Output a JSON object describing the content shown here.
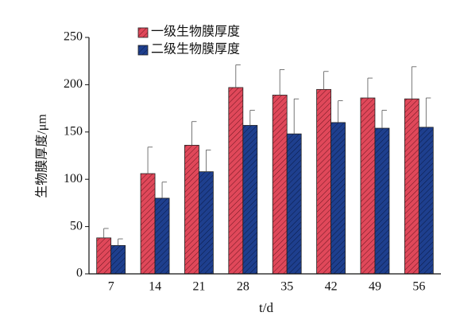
{
  "chart_data": {
    "type": "bar",
    "categories": [
      "7",
      "14",
      "21",
      "28",
      "35",
      "42",
      "49",
      "56"
    ],
    "series": [
      {
        "name": "一级生物膜厚度",
        "color": "#e0485a",
        "values": [
          38,
          106,
          136,
          197,
          189,
          195,
          186,
          185
        ],
        "errors": [
          10,
          28,
          25,
          24,
          27,
          19,
          21,
          34
        ]
      },
      {
        "name": "二级生物膜厚度",
        "color": "#1e3f8e",
        "values": [
          30,
          80,
          108,
          157,
          148,
          160,
          154,
          155
        ],
        "errors": [
          7,
          17,
          23,
          16,
          37,
          23,
          19,
          31
        ]
      }
    ],
    "xlabel": "t/d",
    "ylabel": "生物膜厚度/μm",
    "ylim": [
      0,
      250
    ],
    "yticks": [
      0,
      50,
      100,
      150,
      200,
      250
    ],
    "legend": "upper left",
    "grid": false
  }
}
